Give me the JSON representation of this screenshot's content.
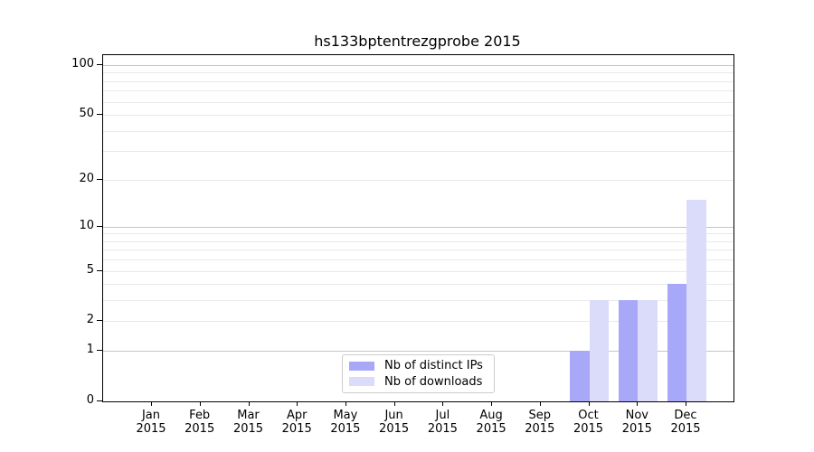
{
  "title": "hs133bptentrezgprobe 2015",
  "chart_data": {
    "type": "bar",
    "title": "hs133bptentrezgprobe 2015",
    "categories": [
      "Jan",
      "Feb",
      "Mar",
      "Apr",
      "May",
      "Jun",
      "Jul",
      "Aug",
      "Sep",
      "Oct",
      "Nov",
      "Dec"
    ],
    "year": "2015",
    "series": [
      {
        "name": "Nb of distinct IPs",
        "color": "#a8a8f8",
        "values": [
          0,
          0,
          0,
          0,
          0,
          0,
          0,
          0,
          0,
          1,
          3,
          4
        ]
      },
      {
        "name": "Nb of downloads",
        "color": "#dbdbfa",
        "values": [
          0,
          0,
          0,
          0,
          0,
          0,
          0,
          0,
          0,
          3,
          3,
          15
        ]
      }
    ],
    "y_axis": {
      "scale": "log1p",
      "tick_labels": [
        "0",
        "1",
        "2",
        "5",
        "10",
        "20",
        "50",
        "100"
      ],
      "tick_values": [
        0,
        1,
        2,
        5,
        10,
        20,
        50,
        100
      ],
      "major_gridlines": [
        1,
        10,
        100
      ],
      "minor_gridlines": [
        2,
        3,
        4,
        5,
        6,
        7,
        8,
        9,
        20,
        30,
        40,
        50,
        60,
        70,
        80,
        90
      ],
      "ylim": [
        0,
        115
      ]
    },
    "legend_position": "lower center",
    "grid": "horizontal"
  },
  "colors": {
    "major_gridline": "#c6c6c6",
    "minor_gridline": "#e9e9e9",
    "axis": "#000000",
    "background": "#ffffff"
  }
}
